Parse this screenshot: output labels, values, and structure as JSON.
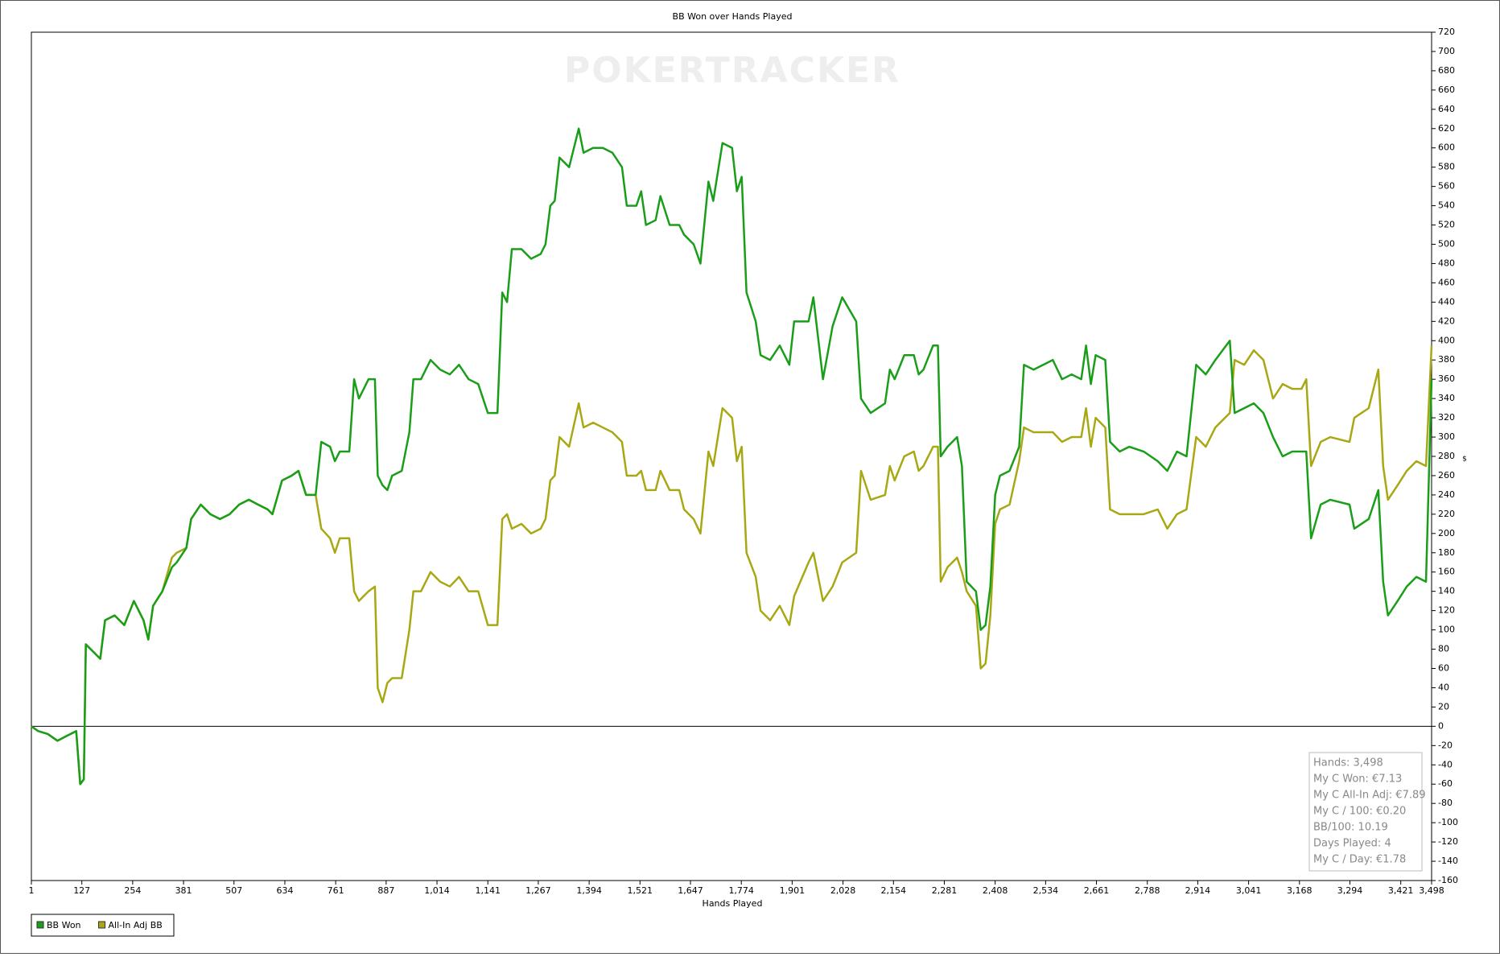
{
  "chart_data": {
    "type": "line",
    "title": "BB Won over Hands Played",
    "xlabel": "Hands Played",
    "ylabel": "$",
    "watermark": "POKERTRACKER",
    "x": [
      1,
      18,
      42,
      66,
      89,
      113,
      123,
      132,
      137,
      161,
      173,
      185,
      209,
      233,
      257,
      281,
      293,
      305,
      328,
      352,
      364,
      388,
      400,
      424,
      448,
      472,
      496,
      520,
      544,
      567,
      591,
      603,
      627,
      651,
      668,
      687,
      711,
      725,
      747,
      759,
      771,
      795,
      807,
      819,
      843,
      859,
      866,
      878,
      890,
      902,
      926,
      945,
      955,
      974,
      998,
      1022,
      1046,
      1069,
      1093,
      1117,
      1141,
      1165,
      1177,
      1189,
      1201,
      1225,
      1249,
      1273,
      1285,
      1297,
      1308,
      1320,
      1344,
      1368,
      1380,
      1404,
      1428,
      1452,
      1476,
      1488,
      1512,
      1524,
      1536,
      1560,
      1572,
      1595,
      1619,
      1631,
      1655,
      1672,
      1692,
      1704,
      1727,
      1751,
      1763,
      1775,
      1787,
      1810,
      1822,
      1846,
      1870,
      1894,
      1906,
      1942,
      1954,
      1978,
      2002,
      2026,
      2061,
      2073,
      2097,
      2133,
      2145,
      2157,
      2181,
      2205,
      2217,
      2229,
      2253,
      2265,
      2272,
      2289,
      2313,
      2325,
      2337,
      2360,
      2372,
      2384,
      2396,
      2408,
      2420,
      2444,
      2468,
      2480,
      2504,
      2528,
      2552,
      2575,
      2599,
      2623,
      2635,
      2647,
      2659,
      2683,
      2695,
      2719,
      2743,
      2779,
      2814,
      2838,
      2862,
      2886,
      2910,
      2934,
      2958,
      2994,
      3006,
      3030,
      3054,
      3078,
      3102,
      3126,
      3150,
      3173,
      3185,
      3197,
      3221,
      3245,
      3293,
      3305,
      3341,
      3365,
      3377,
      3389,
      3413,
      3436,
      3460,
      3484,
      3498
    ],
    "series": [
      {
        "name": "All-In Adj BB",
        "color": "#a8a814",
        "values": [
          0,
          -5,
          -8,
          -15,
          -10,
          -5,
          -60,
          -55,
          85,
          75,
          70,
          110,
          115,
          105,
          130,
          110,
          90,
          125,
          140,
          175,
          180,
          185,
          215,
          230,
          220,
          215,
          220,
          230,
          235,
          230,
          225,
          220,
          255,
          260,
          265,
          240,
          240,
          205,
          195,
          180,
          195,
          195,
          140,
          130,
          140,
          145,
          40,
          25,
          45,
          50,
          50,
          100,
          140,
          140,
          160,
          150,
          145,
          155,
          140,
          140,
          105,
          105,
          215,
          220,
          205,
          210,
          200,
          205,
          215,
          255,
          260,
          300,
          290,
          335,
          310,
          315,
          310,
          305,
          295,
          260,
          260,
          265,
          245,
          245,
          265,
          245,
          245,
          225,
          215,
          200,
          285,
          270,
          330,
          320,
          275,
          290,
          180,
          155,
          120,
          110,
          125,
          105,
          135,
          170,
          180,
          130,
          145,
          170,
          180,
          265,
          235,
          240,
          270,
          255,
          280,
          285,
          265,
          270,
          290,
          290,
          150,
          165,
          175,
          160,
          140,
          125,
          60,
          65,
          115,
          210,
          225,
          230,
          275,
          310,
          305,
          305,
          305,
          295,
          300,
          300,
          330,
          290,
          320,
          310,
          225,
          220,
          220,
          220,
          225,
          205,
          220,
          225,
          300,
          290,
          310,
          325,
          380,
          375,
          390,
          380,
          340,
          355,
          350,
          350,
          360,
          270,
          295,
          300,
          295,
          320,
          330,
          370,
          270,
          235,
          250,
          265,
          275,
          270,
          395
        ]
      },
      {
        "name": "BB Won",
        "color": "#1a9e1a",
        "values": [
          0,
          -5,
          -8,
          -15,
          -10,
          -5,
          -60,
          -55,
          85,
          75,
          70,
          110,
          115,
          105,
          130,
          110,
          90,
          125,
          140,
          165,
          170,
          185,
          215,
          230,
          220,
          215,
          220,
          230,
          235,
          230,
          225,
          220,
          255,
          260,
          265,
          240,
          240,
          295,
          290,
          275,
          285,
          285,
          360,
          340,
          360,
          360,
          260,
          250,
          245,
          260,
          265,
          305,
          360,
          360,
          380,
          370,
          365,
          375,
          360,
          355,
          325,
          325,
          450,
          440,
          495,
          495,
          485,
          490,
          500,
          540,
          545,
          590,
          580,
          620,
          595,
          600,
          600,
          595,
          580,
          540,
          540,
          555,
          520,
          525,
          550,
          520,
          520,
          510,
          500,
          480,
          565,
          545,
          605,
          600,
          555,
          570,
          450,
          420,
          385,
          380,
          395,
          375,
          420,
          420,
          445,
          360,
          415,
          445,
          420,
          340,
          325,
          335,
          370,
          360,
          385,
          385,
          365,
          370,
          395,
          395,
          280,
          290,
          300,
          270,
          150,
          140,
          100,
          105,
          145,
          240,
          260,
          265,
          290,
          375,
          370,
          375,
          380,
          360,
          365,
          360,
          395,
          355,
          385,
          380,
          295,
          285,
          290,
          285,
          275,
          265,
          285,
          280,
          375,
          365,
          380,
          400,
          325,
          330,
          335,
          325,
          300,
          280,
          285,
          285,
          285,
          195,
          230,
          235,
          230,
          205,
          215,
          245,
          150,
          115,
          130,
          145,
          155,
          150,
          360
        ]
      }
    ],
    "xlim": [
      1,
      3498
    ],
    "xticks": [
      1,
      127,
      254,
      381,
      507,
      634,
      761,
      887,
      {
        "value": 1014,
        "label": "1,014"
      },
      {
        "value": 1141,
        "label": "1,141"
      },
      {
        "value": 1267,
        "label": "1,267"
      },
      {
        "value": 1394,
        "label": "1,394"
      },
      {
        "value": 1521,
        "label": "1,521"
      },
      {
        "value": 1647,
        "label": "1,647"
      },
      {
        "value": 1774,
        "label": "1,774"
      },
      {
        "value": 1901,
        "label": "1,901"
      },
      {
        "value": 2028,
        "label": "2,028"
      },
      {
        "value": 2154,
        "label": "2,154"
      },
      {
        "value": 2281,
        "label": "2,281"
      },
      {
        "value": 2408,
        "label": "2,408"
      },
      {
        "value": 2534,
        "label": "2,534"
      },
      {
        "value": 2661,
        "label": "2,661"
      },
      {
        "value": 2788,
        "label": "2,788"
      },
      {
        "value": 2914,
        "label": "2,914"
      },
      {
        "value": 3041,
        "label": "3,041"
      },
      {
        "value": 3168,
        "label": "3,168"
      },
      {
        "value": 3294,
        "label": "3,294"
      },
      {
        "value": 3421,
        "label": "3,421"
      },
      {
        "value": 3498,
        "label": "3,498"
      }
    ],
    "ylim": [
      -160,
      720
    ],
    "yticks": [
      -160,
      -140,
      -120,
      -100,
      -80,
      -60,
      -40,
      -20,
      0,
      20,
      40,
      60,
      80,
      100,
      120,
      140,
      160,
      180,
      200,
      220,
      240,
      260,
      280,
      300,
      320,
      340,
      360,
      380,
      400,
      420,
      440,
      460,
      480,
      500,
      520,
      540,
      560,
      580,
      600,
      620,
      640,
      660,
      680,
      700,
      720
    ],
    "zero_line": true,
    "stats": [
      "Hands: 3,498",
      "My C Won: €7.13",
      "My C All-In Adj: €7.89",
      "My C / 100: €0.20",
      "BB/100: 10.19",
      "Days Played: 4",
      "My C / Day: €1.78"
    ]
  }
}
